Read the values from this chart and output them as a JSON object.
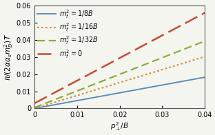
{
  "xlim": [
    0,
    0.04
  ],
  "ylim": [
    0,
    0.06
  ],
  "xticks": [
    0,
    0.01,
    0.02,
    0.03,
    0.04
  ],
  "yticks": [
    0,
    0.01,
    0.02,
    0.03,
    0.04,
    0.05,
    0.06
  ],
  "lines": [
    {
      "label": "$m_f^2 = 1/8B$",
      "slope": 0.455,
      "intercept": 0.0,
      "color": "#5b8db8",
      "linestyle": "solid",
      "linewidth": 1.4,
      "dash": null
    },
    {
      "label": "$m_f^2 = 1/16B$",
      "slope": 0.755,
      "intercept": 0.0,
      "color": "#d4933a",
      "linestyle": "dotted",
      "linewidth": 1.6,
      "dash": [
        1.2,
        1.5
      ]
    },
    {
      "label": "$m_f^2 = 1/32B$",
      "slope": 0.97,
      "intercept": 0.0005,
      "color": "#8aac3c",
      "linestyle": "dashed",
      "linewidth": 1.6,
      "dash": [
        5,
        2.5
      ]
    },
    {
      "label": "$m_f^2 = 0$",
      "slope": 1.32,
      "intercept": 0.003,
      "color": "#c84b30",
      "linestyle": "dashed",
      "linewidth": 1.8,
      "dash": [
        8,
        3
      ]
    }
  ],
  "ylabel": "$\\pi/(2\\alpha\\alpha_s(m_D^2)\\,T$",
  "xlabel": "$p_\\perp^2/B$",
  "legend_fontsize": 7.0,
  "tick_labelsize": 7,
  "label_fontsize": 7.5,
  "background_color": "#f5f5f0"
}
